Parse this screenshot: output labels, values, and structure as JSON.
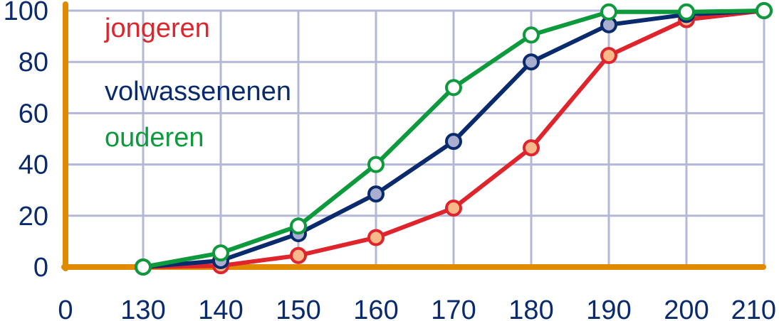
{
  "chart_data": {
    "type": "line",
    "x": [
      130,
      140,
      150,
      160,
      170,
      180,
      190,
      200,
      210
    ],
    "x_tick_labels": [
      "0",
      "130",
      "140",
      "150",
      "160",
      "170",
      "180",
      "190",
      "200",
      "210"
    ],
    "y_tick_labels": [
      "0",
      "20",
      "40",
      "60",
      "80",
      "100"
    ],
    "ylim": [
      0,
      100
    ],
    "grid": true,
    "legend_position": "top-left",
    "axis_color": "#e08a00",
    "grid_color": "#b4b8d8",
    "series": [
      {
        "name": "jongeren",
        "color": "#e0242c",
        "marker_fill": "#f9b98a",
        "values": [
          0,
          0.5,
          4.5,
          11.5,
          23,
          46.5,
          82.5,
          96.5,
          100
        ]
      },
      {
        "name": "volwassenenen",
        "color": "#0a2a6e",
        "marker_fill": "#a9adcf",
        "values": [
          0,
          2.5,
          13,
          28.5,
          49,
          80,
          94.5,
          98.5,
          100
        ]
      },
      {
        "name": "ouderen",
        "color": "#0d9a3c",
        "marker_fill": "#ffffff",
        "values": [
          0,
          5.5,
          16,
          40,
          70,
          90.5,
          99.5,
          99.5,
          100
        ]
      }
    ]
  }
}
